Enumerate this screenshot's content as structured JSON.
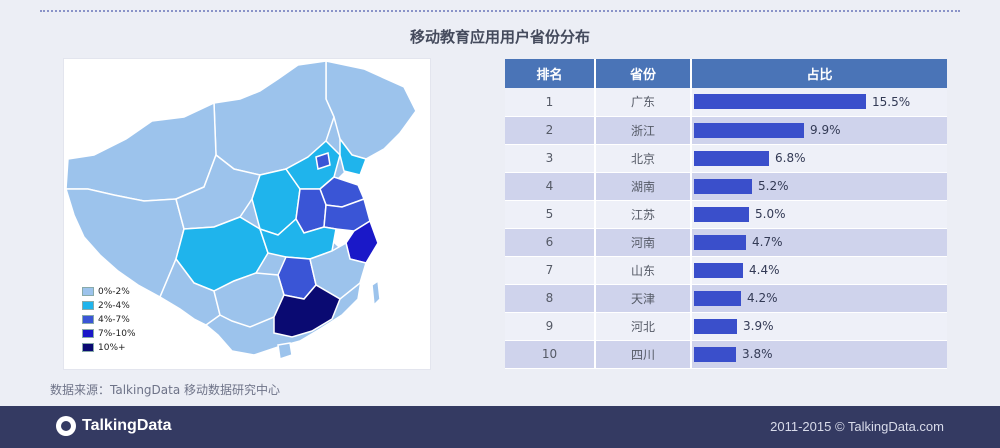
{
  "title": "移动教育应用用户省份分布",
  "legend": [
    {
      "label": "0%-2%",
      "color": "#9cc3ec"
    },
    {
      "label": "2%-4%",
      "color": "#1fb4ec"
    },
    {
      "label": "4%-7%",
      "color": "#3a55d6"
    },
    {
      "label": "7%-10%",
      "color": "#1a18c8"
    },
    {
      "label": "10%+",
      "color": "#0a0a72"
    }
  ],
  "table": {
    "headers": [
      "排名",
      "省份",
      "占比"
    ]
  },
  "chart_data": {
    "type": "bar",
    "categories": [
      "广东",
      "浙江",
      "北京",
      "湖南",
      "江苏",
      "河南",
      "山东",
      "天津",
      "河北",
      "四川"
    ],
    "ranks": [
      "1",
      "2",
      "3",
      "4",
      "5",
      "6",
      "7",
      "8",
      "9",
      "10"
    ],
    "values": [
      15.5,
      9.9,
      6.8,
      5.2,
      5.0,
      4.7,
      4.4,
      4.2,
      3.9,
      3.8
    ],
    "value_labels": [
      "15.5%",
      "9.9%",
      "6.8%",
      "5.2%",
      "5.0%",
      "4.7%",
      "4.4%",
      "4.2%",
      "3.9%",
      "3.8%"
    ],
    "bar_color": "#3a4fcb"
  },
  "source": "数据来源：TalkingData 移动数据研究中心",
  "footer": {
    "logo_text": "TalkingData",
    "copyright": "2011-2015 © TalkingData.com"
  }
}
